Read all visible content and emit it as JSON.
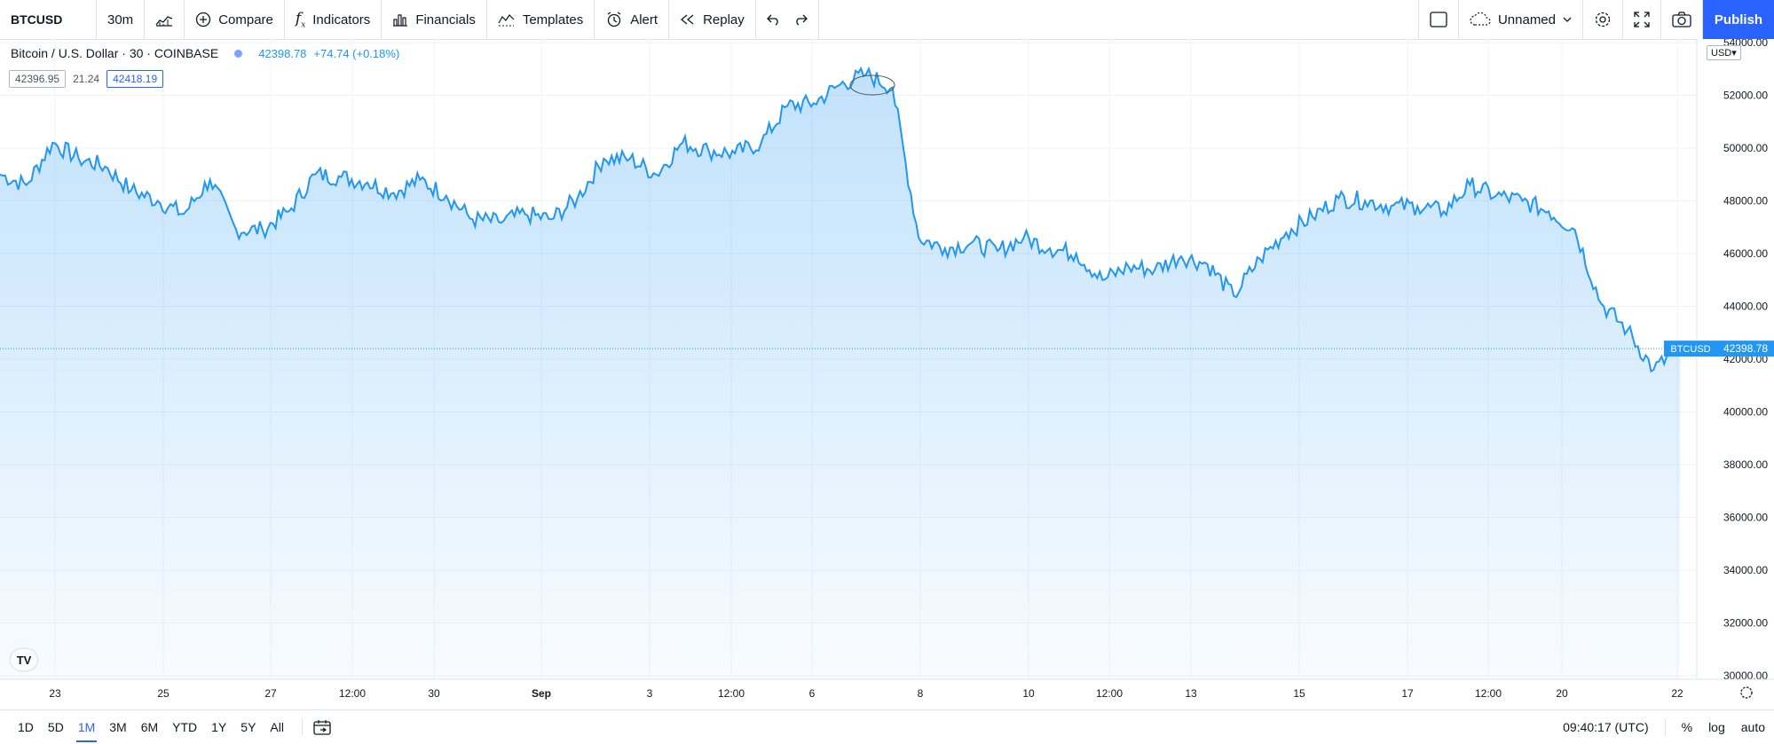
{
  "toolbar": {
    "symbol": "BTCUSD",
    "interval": "30m",
    "compare": "Compare",
    "indicators": "Indicators",
    "financials": "Financials",
    "templates": "Templates",
    "alert": "Alert",
    "replay": "Replay",
    "layout_name": "Unnamed",
    "publish": "Publish"
  },
  "legend": {
    "title": "Bitcoin / U.S. Dollar · 30 · COINBASE",
    "price": "42398.78",
    "change": "+74.74 (+0.18%)",
    "bid": "42396.95",
    "spread": "21.24",
    "ask": "42418.19"
  },
  "price_axis": {
    "currency": "USD",
    "ticks": [
      "30000.00",
      "32000.00",
      "34000.00",
      "36000.00",
      "38000.00",
      "40000.00",
      "42000.00",
      "44000.00",
      "46000.00",
      "48000.00",
      "50000.00",
      "52000.00",
      "54000.00"
    ],
    "symbol_tag": "BTCUSD",
    "last_price_tag": "42398.78"
  },
  "time_axis": {
    "ticks": [
      "23",
      "25",
      "27",
      "12:00",
      "30",
      "Sep",
      "3",
      "12:00",
      "6",
      "8",
      "10",
      "12:00",
      "13",
      "15",
      "17",
      "12:00",
      "20",
      "22"
    ]
  },
  "bottom": {
    "ranges": [
      "1D",
      "5D",
      "1M",
      "3M",
      "6M",
      "YTD",
      "1Y",
      "5Y",
      "All"
    ],
    "active_range": "1M",
    "clock": "09:40:17 (UTC)",
    "percent": "%",
    "log": "log",
    "auto": "auto"
  },
  "colors": {
    "line": "#2196f3",
    "accent": "#2962ff"
  },
  "chart_data": {
    "type": "area",
    "series": [
      {
        "name": "BTCUSD",
        "x": [
          "Aug 22",
          "Aug 22 12:00",
          "Aug 23",
          "Aug 23 12:00",
          "Aug 24",
          "Aug 24 12:00",
          "Aug 25",
          "Aug 25 12:00",
          "Aug 26",
          "Aug 26 12:00",
          "Aug 27",
          "Aug 27 12:00",
          "Aug 28",
          "Aug 28 12:00",
          "Aug 29",
          "Aug 29 12:00",
          "Aug 30",
          "Aug 30 12:00",
          "Aug 31",
          "Aug 31 12:00",
          "Sep 1",
          "Sep 1 12:00",
          "Sep 2",
          "Sep 2 12:00",
          "Sep 3",
          "Sep 3 12:00",
          "Sep 4",
          "Sep 4 12:00",
          "Sep 5",
          "Sep 5 12:00",
          "Sep 6",
          "Sep 6 12:00",
          "Sep 7",
          "Sep 7 06:00",
          "Sep 7 12:00",
          "Sep 7 18:00",
          "Sep 8",
          "Sep 8 12:00",
          "Sep 9",
          "Sep 9 12:00",
          "Sep 10",
          "Sep 10 12:00",
          "Sep 11",
          "Sep 11 12:00",
          "Sep 12",
          "Sep 12 12:00",
          "Sep 13",
          "Sep 13 12:00",
          "Sep 14",
          "Sep 14 12:00",
          "Sep 15",
          "Sep 15 12:00",
          "Sep 16",
          "Sep 16 12:00",
          "Sep 17",
          "Sep 17 12:00",
          "Sep 18",
          "Sep 18 12:00",
          "Sep 19",
          "Sep 19 12:00",
          "Sep 20",
          "Sep 20 12:00",
          "Sep 21",
          "Sep 21 12:00",
          "Sep 22"
        ],
        "values": [
          49000,
          48600,
          50200,
          49600,
          49300,
          48400,
          48000,
          47500,
          48800,
          46900,
          46900,
          47600,
          49000,
          48900,
          48700,
          48300,
          48800,
          48200,
          47300,
          47200,
          47500,
          47300,
          48100,
          49600,
          49600,
          49000,
          50200,
          49900,
          49800,
          50200,
          51600,
          51700,
          52400,
          52800,
          52300,
          46600,
          46200,
          46400,
          46100,
          46600,
          46200,
          46000,
          45000,
          45500,
          45400,
          45900,
          45600,
          44400,
          45800,
          46800,
          47400,
          48100,
          48000,
          47800,
          47800,
          47600,
          48600,
          48200,
          48000,
          47600,
          46900,
          44100,
          43100,
          41600,
          42398
        ]
      }
    ],
    "ylim": [
      30000,
      54000
    ]
  }
}
